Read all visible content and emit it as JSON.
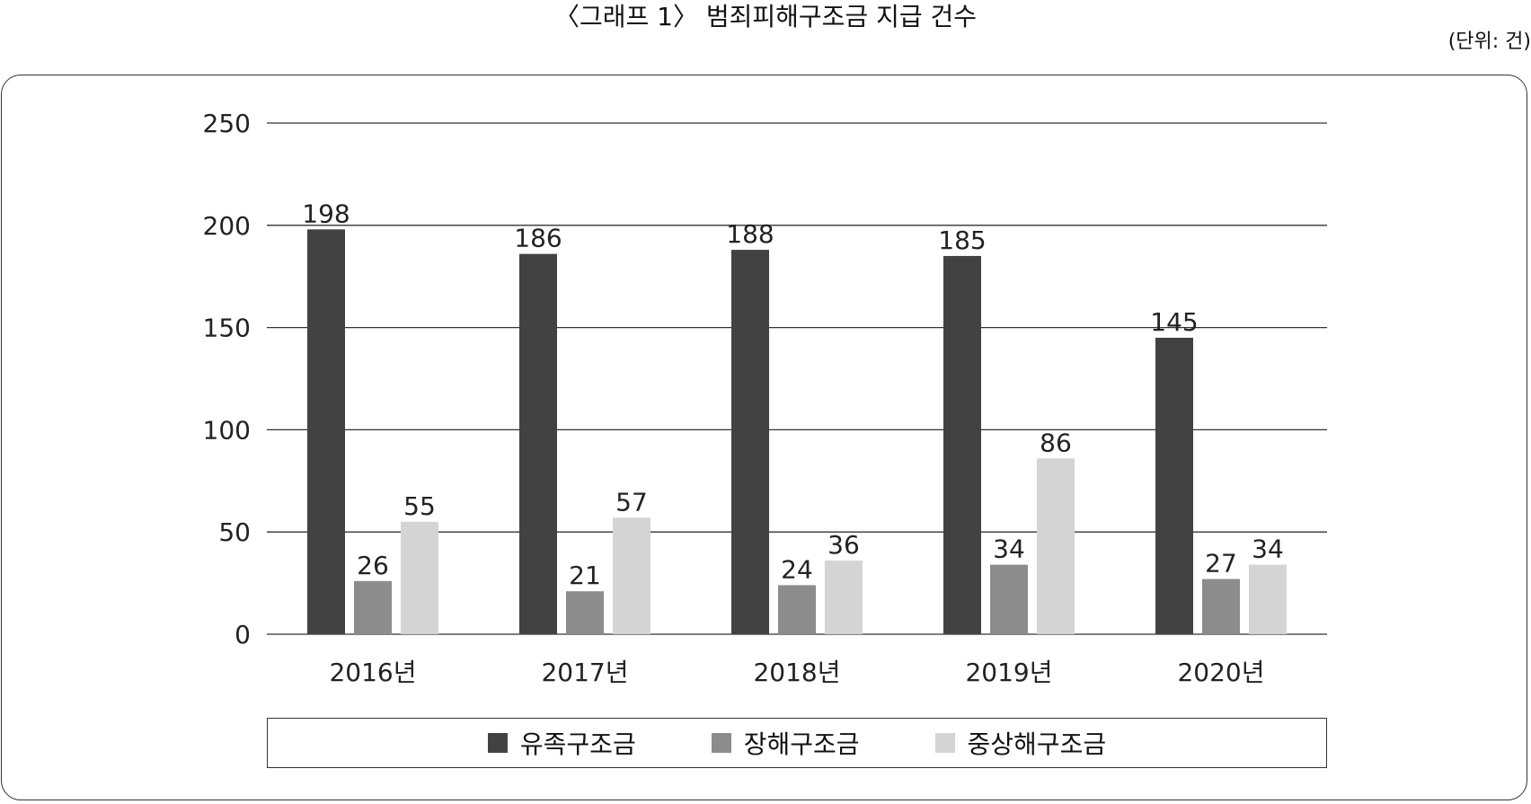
{
  "header": {
    "title": "〈그래프 1〉 범죄피해구조금 지급 건수",
    "unit": "(단위: 건)"
  },
  "colors": {
    "유족구조금": "#424242",
    "장해구조금": "#8c8c8c",
    "중상해구조금": "#d4d4d4",
    "grid": "#333333"
  },
  "chart_data": {
    "type": "bar",
    "title": "〈그래프 1〉 범죄피해구조금 지급 건수",
    "xlabel": "",
    "ylabel": "",
    "categories": [
      "2016년",
      "2017년",
      "2018년",
      "2019년",
      "2020년"
    ],
    "series": [
      {
        "name": "유족구조금",
        "values": [
          198,
          186,
          188,
          185,
          145
        ]
      },
      {
        "name": "장해구조금",
        "values": [
          26,
          21,
          24,
          34,
          27
        ]
      },
      {
        "name": "중상해구조금",
        "values": [
          55,
          57,
          36,
          86,
          34
        ]
      }
    ],
    "ylim": [
      0,
      250
    ],
    "yticks": [
      0,
      50,
      100,
      150,
      200,
      250
    ],
    "grid": true,
    "data_labels": true,
    "legend_position": "bottom"
  }
}
